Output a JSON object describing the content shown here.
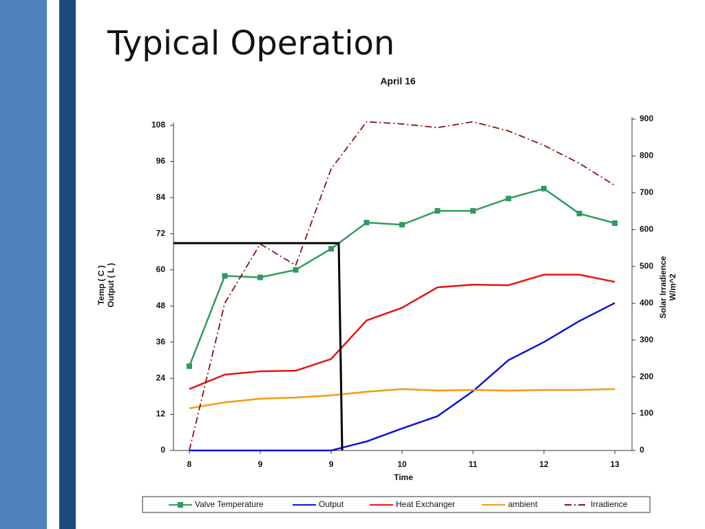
{
  "slide_title": "Typical Operation",
  "chart_data": {
    "type": "line",
    "title": "April 16",
    "x_label": "Time",
    "y_label": [
      "Temp ( C )",
      "Output ( L )"
    ],
    "y2_label": [
      "Solar Irradience",
      "W/m^2"
    ],
    "categories": [
      "8",
      null,
      "9",
      null,
      "9",
      null,
      "10",
      null,
      "11",
      null,
      "12",
      null,
      "13"
    ],
    "ylim": [
      0,
      108
    ],
    "yticks": [
      0,
      12,
      24,
      36,
      48,
      60,
      72,
      84,
      96,
      108
    ],
    "y2lim": [
      0,
      900
    ],
    "y2ticks": [
      0,
      100,
      200,
      300,
      400,
      500,
      600,
      700,
      800,
      900
    ],
    "legend": "bottom",
    "series": [
      {
        "name": "Valve Temperature",
        "color": "#2e9b5e",
        "marker": "square",
        "values": [
          28,
          58,
          57.5,
          60,
          67,
          75.7,
          75,
          79.6,
          79.6,
          83.7,
          87,
          78.7,
          75.5
        ]
      },
      {
        "name": "Output",
        "color": "#0a14d2",
        "values": [
          0,
          0,
          0,
          0,
          0,
          3,
          7.3,
          11.4,
          19.7,
          30,
          36,
          43,
          49
        ]
      },
      {
        "name": "Heat Exchanger",
        "color": "#e21414",
        "values": [
          20.4,
          25.2,
          26.3,
          26.5,
          30.4,
          43.2,
          47.4,
          54.2,
          55.1,
          54.9,
          58.4,
          58.4,
          56
        ]
      },
      {
        "name": "ambient",
        "color": "#f59a0c",
        "values": [
          14,
          16,
          17.2,
          17.6,
          18.3,
          19.5,
          20.4,
          19.9,
          20.1,
          19.9,
          20.1,
          20.1,
          20.4
        ]
      },
      {
        "name": "Irradience",
        "color": "#8b1010",
        "axis": "y2",
        "line_style": "dashdot",
        "values": [
          0,
          400,
          561,
          503,
          765,
          893,
          887,
          877,
          893,
          868,
          829,
          780,
          720
        ]
      }
    ]
  }
}
